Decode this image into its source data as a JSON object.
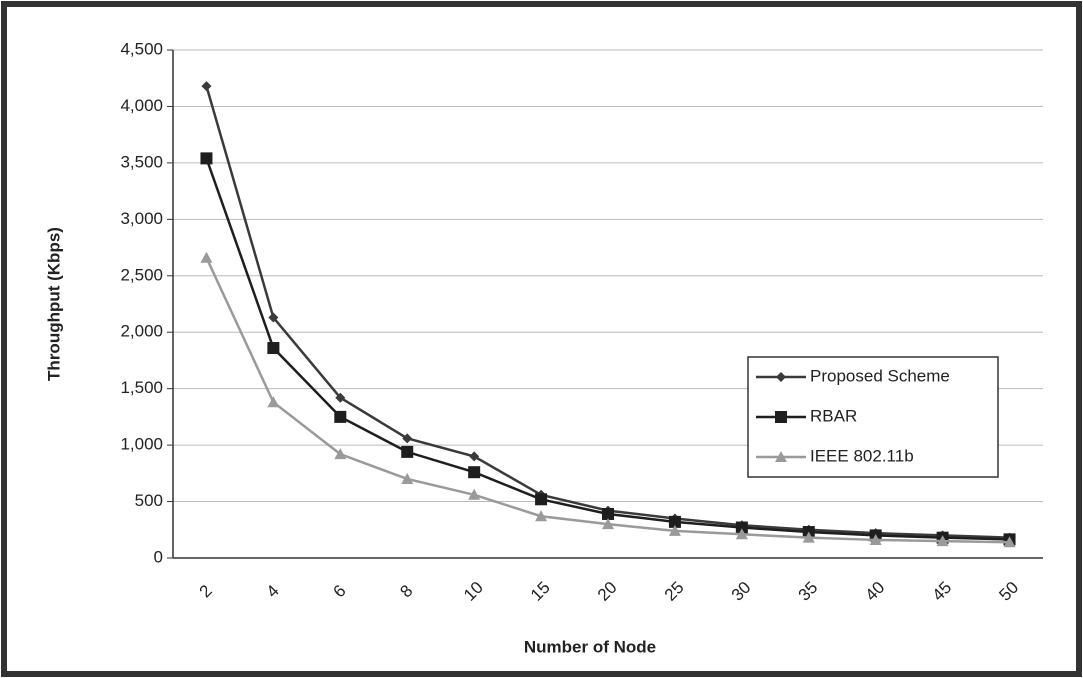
{
  "chart_data": {
    "type": "line",
    "x_label": "Number of Node",
    "y_label": "Throughput (Kbps)",
    "categories": [
      "2",
      "4",
      "6",
      "8",
      "10",
      "15",
      "20",
      "25",
      "30",
      "35",
      "40",
      "45",
      "50"
    ],
    "series": [
      {
        "name": "Proposed Scheme",
        "color": "#3a3a3a",
        "marker": "diamond",
        "values": [
          4180,
          2130,
          1420,
          1060,
          900,
          560,
          420,
          350,
          290,
          250,
          220,
          200,
          180
        ]
      },
      {
        "name": "RBAR",
        "color": "#1e1e1e",
        "marker": "square",
        "values": [
          3540,
          1860,
          1250,
          940,
          760,
          520,
          390,
          320,
          270,
          230,
          200,
          180,
          165
        ]
      },
      {
        "name": "IEEE 802.11b",
        "color": "#9a9a9a",
        "marker": "triangle",
        "values": [
          2660,
          1380,
          920,
          700,
          560,
          370,
          300,
          240,
          210,
          180,
          160,
          150,
          140
        ]
      }
    ],
    "ylim": [
      0,
      4500
    ],
    "yticks": [
      0,
      500,
      {
        "value": 1000,
        "label": "1,000"
      },
      {
        "value": 1500,
        "label": "1,500"
      },
      {
        "value": 2000,
        "label": "2,000"
      },
      {
        "value": 2500,
        "label": "2,500"
      },
      {
        "value": 3000,
        "label": "3,000"
      },
      {
        "value": 3500,
        "label": "3,500"
      },
      {
        "value": 4000,
        "label": "4,000"
      },
      {
        "value": 4500,
        "label": "4,500"
      }
    ],
    "grid": true,
    "legend": "right"
  }
}
